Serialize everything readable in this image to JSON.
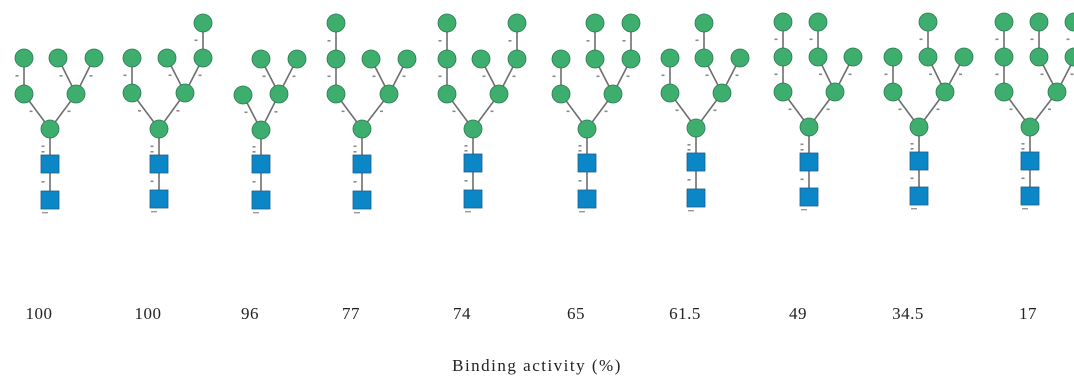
{
  "colors": {
    "mannose": "#3dae6e",
    "glcnac": "#0b87c8",
    "bond": "#6e6e6e",
    "text": "#222222"
  },
  "icons": {
    "mannose": "green-circle",
    "glcnac": "blue-square"
  },
  "glycans": [
    {
      "id": "g1",
      "binding_activity": "100"
    },
    {
      "id": "g2",
      "binding_activity": "100"
    },
    {
      "id": "g3",
      "binding_activity": "96"
    },
    {
      "id": "g4",
      "binding_activity": "77"
    },
    {
      "id": "g5",
      "binding_activity": "74"
    },
    {
      "id": "g6",
      "binding_activity": "65"
    },
    {
      "id": "g7",
      "binding_activity": "61.5"
    },
    {
      "id": "g8",
      "binding_activity": "49"
    },
    {
      "id": "g9",
      "binding_activity": "34.5"
    },
    {
      "id": "g10",
      "binding_activity": "17"
    }
  ],
  "axis_label": "Binding activity (%)"
}
